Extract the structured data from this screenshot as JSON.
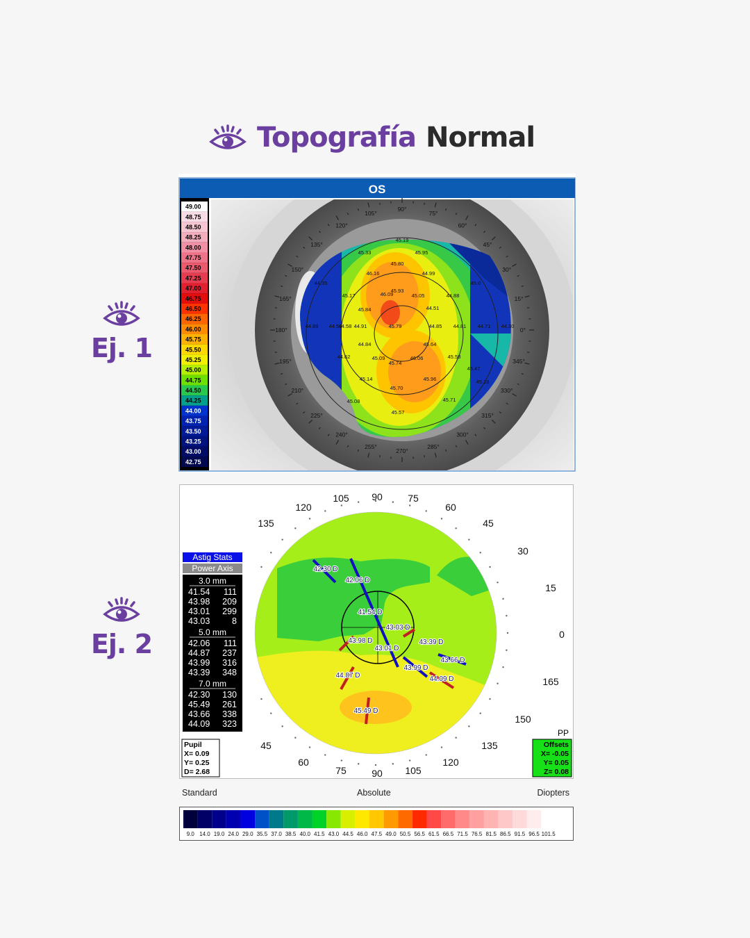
{
  "header": {
    "title_part1": "Topografía",
    "title_part2": "Normal",
    "icon": "eye-icon",
    "accent_color": "#6a3fa0"
  },
  "examples": [
    {
      "label": "Ej. 1",
      "icon": "eye-icon"
    },
    {
      "label": "Ej. 2",
      "icon": "eye-icon"
    }
  ],
  "map1": {
    "title": "OS",
    "scale_values": [
      "49.00",
      "48.75",
      "48.50",
      "48.25",
      "48.00",
      "47.75",
      "47.50",
      "47.25",
      "47.00",
      "46.75",
      "46.50",
      "46.25",
      "46.00",
      "45.75",
      "45.50",
      "45.25",
      "45.00",
      "44.75",
      "44.50",
      "44.25",
      "44.00",
      "43.75",
      "43.50",
      "43.25",
      "43.00",
      "42.75"
    ],
    "scale_colors": [
      "#ffffff",
      "#f9dbe6",
      "#f6c5d2",
      "#f3adbd",
      "#f190a4",
      "#ee7389",
      "#eb5a6d",
      "#e63c4f",
      "#e01f2f",
      "#e60d0d",
      "#ff3300",
      "#ff6600",
      "#ff8c00",
      "#ffb300",
      "#ffd800",
      "#f0f000",
      "#b4f000",
      "#6ee000",
      "#28c850",
      "#009e8c",
      "#0033cc",
      "#0022b0",
      "#001a98",
      "#00137e",
      "#000c66",
      "#000850"
    ],
    "angle_labels": [
      "90°",
      "75°",
      "60°",
      "45°",
      "30°",
      "15°",
      "0°",
      "345°",
      "330°",
      "315°",
      "300°",
      "285°",
      "270°",
      "255°",
      "240°",
      "225°",
      "210°",
      "195°",
      "180°",
      "165°",
      "150°",
      "135°",
      "120°",
      "105°"
    ],
    "readings": [
      "45.19",
      "45.33",
      "45.95",
      "45.80",
      "46.16",
      "44.99",
      "44.35",
      "45.17",
      "46.09",
      "45.93",
      "45.05",
      "44.88",
      "45.0",
      "44.58",
      "45.84",
      "44.51",
      "44.89",
      "44.59",
      "44.91",
      "45.79",
      "44.85",
      "44.81",
      "44.71",
      "44.30",
      "44.84",
      "45.64",
      "44.62",
      "45.09",
      "45.74",
      "46.06",
      "45.58",
      "45.47",
      "45.14",
      "45.96",
      "45.18",
      "45.70",
      "45.71",
      "45.08",
      "45.57"
    ]
  },
  "map2": {
    "angle_labels": [
      "90",
      "75",
      "60",
      "45",
      "30",
      "15",
      "0",
      "165",
      "150",
      "135",
      "120",
      "105",
      "90",
      "75",
      "60",
      "45",
      "135",
      "150",
      "120",
      "105"
    ],
    "astig_stats": {
      "title": "Astig Stats",
      "subtitle": "Power Axis",
      "sections": [
        {
          "zone": "3.0 mm",
          "rows": [
            [
              "41.54",
              "111"
            ],
            [
              "43.98",
              "209"
            ],
            [
              "43.01",
              "299"
            ],
            [
              "43.03",
              "8"
            ]
          ]
        },
        {
          "zone": "5.0 mm",
          "rows": [
            [
              "42.06",
              "111"
            ],
            [
              "44.87",
              "237"
            ],
            [
              "43.99",
              "316"
            ],
            [
              "43.39",
              "348"
            ]
          ]
        },
        {
          "zone": "7.0 mm",
          "rows": [
            [
              "42.30",
              "130"
            ],
            [
              "45.49",
              "261"
            ],
            [
              "43.66",
              "338"
            ],
            [
              "44.09",
              "323"
            ]
          ]
        }
      ]
    },
    "pupil": {
      "title": "Pupil",
      "x": "X= 0.09",
      "y": "Y= 0.25",
      "d": "D= 2.68"
    },
    "pp_label": "PP",
    "offsets": {
      "title": "Offsets",
      "x": "X= -0.05",
      "y": "Y= 0.05",
      "z": "Z= 0.08"
    },
    "meridian_labels": [
      "42.30 D",
      "42.06 D",
      "41.54 D",
      "43.03 D",
      "43.98 D",
      "43.01 D",
      "43.39 D",
      "43.66 D",
      "43.99 D",
      "44.87 D",
      "44.09 D",
      "45.49 D"
    ],
    "footer": {
      "left": "Standard",
      "center": "Absolute",
      "right": "Diopters"
    },
    "scale_values": [
      "9.0",
      "14.0",
      "19.0",
      "24.0",
      "29.0",
      "35.5",
      "37.0",
      "38.5",
      "40.0",
      "41.5",
      "43.0",
      "44.5",
      "46.0",
      "47.5",
      "49.0",
      "50.5",
      "56.5",
      "61.5",
      "66.5",
      "71.5",
      "76.5",
      "81.5",
      "86.5",
      "91.5",
      "96.5",
      "101.5"
    ],
    "scale_colors": [
      "#00003a",
      "#000066",
      "#00008a",
      "#0000b0",
      "#0000e0",
      "#0050c8",
      "#007a8a",
      "#009a6a",
      "#00b848",
      "#00d22a",
      "#88e800",
      "#d8f000",
      "#ffe800",
      "#ffc800",
      "#ff9a00",
      "#ff6a00",
      "#ff2a00",
      "#ff4848",
      "#ff6a6a",
      "#ff8888",
      "#ffa0a0",
      "#ffb4b4",
      "#ffc8c8",
      "#ffdada",
      "#ffecec",
      "#ffffff"
    ]
  }
}
